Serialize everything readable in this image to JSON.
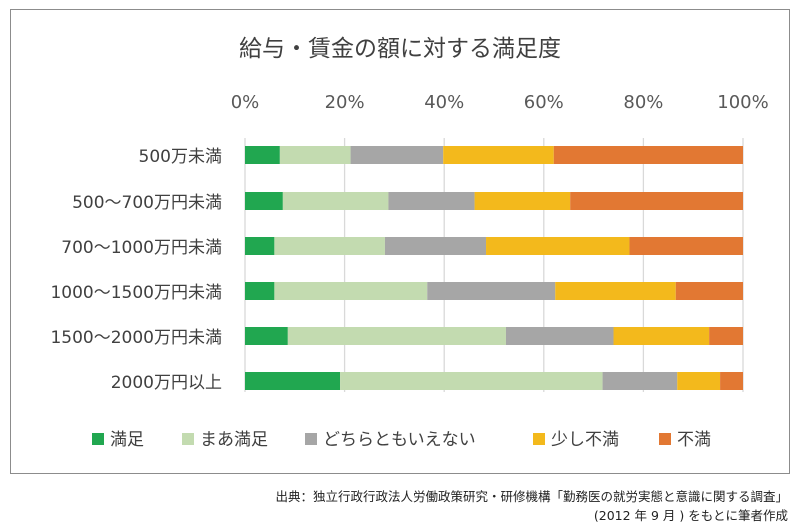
{
  "chart_data": {
    "type": "bar",
    "orientation": "horizontal",
    "stacked": "100%",
    "title": "給与・賃金の額に対する満足度",
    "categories": [
      "500万未満",
      "500～700万円未満",
      "700～1000万円未満",
      "1000～1500万円未満",
      "1500～2000万円未満",
      "2000万円以上"
    ],
    "series": [
      {
        "name": "満足",
        "color": "#21a750",
        "values": [
          7.0,
          7.6,
          5.9,
          5.9,
          8.6,
          19.1
        ]
      },
      {
        "name": "まあ満足",
        "color": "#c3dbb0",
        "values": [
          14.2,
          21.2,
          22.2,
          30.7,
          43.8,
          52.7
        ]
      },
      {
        "name": "どちらともいえない",
        "color": "#a6a6a6",
        "values": [
          18.6,
          17.3,
          20.3,
          25.7,
          21.6,
          15.0
        ]
      },
      {
        "name": "少し不満",
        "color": "#f3b91c",
        "values": [
          22.2,
          19.2,
          28.8,
          24.2,
          19.2,
          8.6
        ]
      },
      {
        "name": "不満",
        "color": "#e27833",
        "values": [
          38.0,
          34.7,
          22.8,
          13.5,
          6.8,
          4.6
        ]
      }
    ],
    "xticks": [
      "0%",
      "20%",
      "40%",
      "60%",
      "80%",
      "100%"
    ],
    "xlim": [
      0,
      100
    ],
    "grid": true,
    "legend": "bottom"
  },
  "source": {
    "line1": "出典：独立行政行政法人労働政策研究・研修機構「勤務医の就労実態と意識に関する調査」",
    "line2": "(2012 年 9 月 ) をもとに筆者作成"
  }
}
